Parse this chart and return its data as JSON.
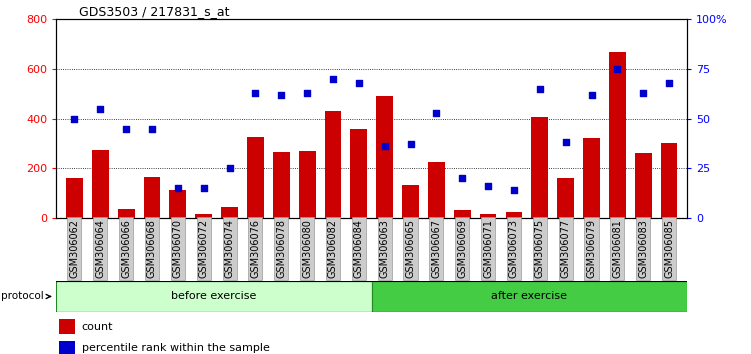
{
  "title": "GDS3503 / 217831_s_at",
  "categories": [
    "GSM306062",
    "GSM306064",
    "GSM306066",
    "GSM306068",
    "GSM306070",
    "GSM306072",
    "GSM306074",
    "GSM306076",
    "GSM306078",
    "GSM306080",
    "GSM306082",
    "GSM306084",
    "GSM306063",
    "GSM306065",
    "GSM306067",
    "GSM306069",
    "GSM306071",
    "GSM306073",
    "GSM306075",
    "GSM306077",
    "GSM306079",
    "GSM306081",
    "GSM306083",
    "GSM306085"
  ],
  "bar_values": [
    160,
    275,
    35,
    165,
    110,
    15,
    45,
    325,
    265,
    270,
    430,
    360,
    490,
    130,
    225,
    30,
    15,
    25,
    405,
    160,
    320,
    670,
    260,
    300
  ],
  "percentile_values": [
    50,
    55,
    45,
    45,
    15,
    15,
    25,
    63,
    62,
    63,
    70,
    68,
    36,
    37,
    53,
    20,
    16,
    14,
    65,
    38,
    62,
    75,
    63,
    68
  ],
  "bar_color": "#cc0000",
  "dot_color": "#0000cc",
  "ylim_left": [
    0,
    800
  ],
  "ylim_right": [
    0,
    100
  ],
  "yticks_left": [
    0,
    200,
    400,
    600,
    800
  ],
  "yticks_right": [
    0,
    25,
    50,
    75,
    100
  ],
  "ytick_labels_right": [
    "0",
    "25",
    "50",
    "75",
    "100%"
  ],
  "protocol_labels": [
    "before exercise",
    "after exercise"
  ],
  "protocol_before_color": "#ccffcc",
  "protocol_after_color": "#44cc44",
  "protocol_border_color": "#228822",
  "n_before": 12,
  "n_after": 12,
  "grid_color": "#000000",
  "bg_color": "#ffffff",
  "plot_bg_color": "#ffffff",
  "label_fontsize": 7,
  "title_fontsize": 9,
  "tick_box_color": "#cccccc",
  "tick_box_edge": "#999999"
}
